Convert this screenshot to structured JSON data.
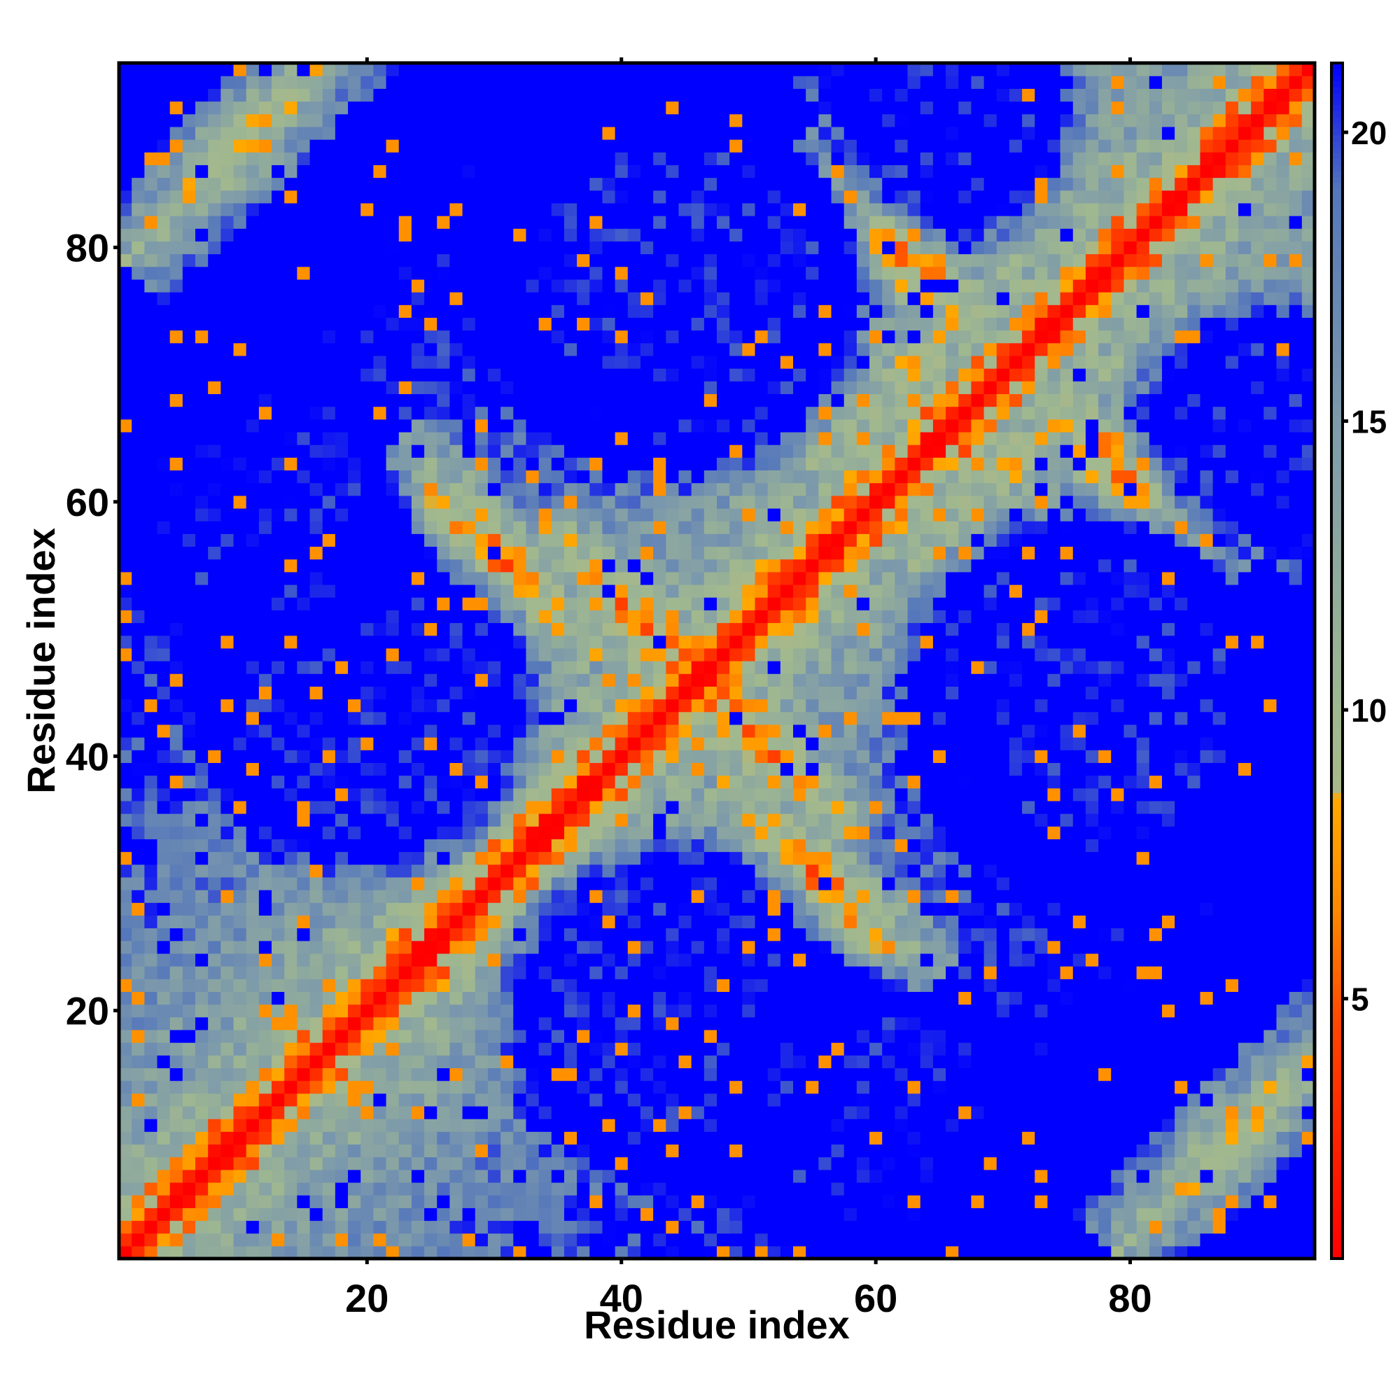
{
  "chart_data": {
    "type": "heatmap",
    "title": "",
    "xlabel": "Residue index",
    "ylabel": "Residue index",
    "n_residues": 94,
    "xlim": [
      1,
      94
    ],
    "ylim": [
      1,
      94
    ],
    "x_ticks": [
      {
        "value": 20,
        "label": "20"
      },
      {
        "value": 40,
        "label": "40"
      },
      {
        "value": 60,
        "label": "60"
      },
      {
        "value": 80,
        "label": "80"
      }
    ],
    "y_ticks": [
      {
        "value": 20,
        "label": "20"
      },
      {
        "value": 40,
        "label": "40"
      },
      {
        "value": 60,
        "label": "60"
      },
      {
        "value": 80,
        "label": "80"
      }
    ],
    "colorbar": {
      "min": 0.5,
      "max": 21.2,
      "ticks": [
        {
          "value": 5,
          "label": "5"
        },
        {
          "value": 10,
          "label": "10"
        },
        {
          "value": 15,
          "label": "15"
        },
        {
          "value": 20,
          "label": "20"
        }
      ],
      "color_stops": [
        {
          "value": 0.5,
          "color": "#ff0000"
        },
        {
          "value": 4.5,
          "color": "#ff4400"
        },
        {
          "value": 6.5,
          "color": "#ff8800"
        },
        {
          "value": 8.5,
          "color": "#ffaa00"
        },
        {
          "value": 8.6,
          "color": "#a8b88a"
        },
        {
          "value": 10.0,
          "color": "#a0b890"
        },
        {
          "value": 15.0,
          "color": "#7d9aab"
        },
        {
          "value": 19.0,
          "color": "#5577bb"
        },
        {
          "value": 21.2,
          "color": "#0000ff"
        }
      ]
    },
    "value_description": "Pairwise residue distance (symmetric contact/distance map)",
    "structure": {
      "diagonal_value": 0.5,
      "cutoff": 21.2,
      "secondary_structure_segments": [
        {
          "start": 2,
          "end": 18
        },
        {
          "start": 22,
          "end": 34
        },
        {
          "start": 38,
          "end": 52
        },
        {
          "start": 56,
          "end": 68
        },
        {
          "start": 72,
          "end": 92
        }
      ],
      "contact_bands": [
        {
          "i_center": 30,
          "j_center": 56,
          "width": 5,
          "anti_parallel": true
        },
        {
          "i_center": 42,
          "j_center": 50,
          "width": 4,
          "anti_parallel": true
        },
        {
          "i_center": 48,
          "j_center": 36,
          "width": 4,
          "anti_parallel": true
        },
        {
          "i_center": 64,
          "j_center": 72,
          "width": 4,
          "anti_parallel": false
        },
        {
          "i_center": 10,
          "j_center": 88,
          "width": 6,
          "anti_parallel": false
        },
        {
          "i_center": 82,
          "j_center": 8,
          "width": 6,
          "anti_parallel": false
        },
        {
          "i_center": 26,
          "j_center": 8,
          "width": 5,
          "anti_parallel": false
        },
        {
          "i_center": 62,
          "j_center": 80,
          "width": 4,
          "anti_parallel": true
        }
      ],
      "blue_voids": [
        {
          "i_center": 44,
          "j_center": 80,
          "radius": 12
        },
        {
          "i_center": 80,
          "j_center": 44,
          "radius": 12
        },
        {
          "i_center": 20,
          "j_center": 44,
          "radius": 11
        },
        {
          "i_center": 44,
          "j_center": 20,
          "radius": 11
        },
        {
          "i_center": 76,
          "j_center": 44,
          "radius": 12
        },
        {
          "i_center": 44,
          "j_center": 76,
          "radius": 12
        },
        {
          "i_center": 60,
          "j_center": 12,
          "radius": 9
        },
        {
          "i_center": 12,
          "j_center": 60,
          "radius": 9
        },
        {
          "i_center": 66,
          "j_center": 90,
          "radius": 7
        },
        {
          "i_center": 90,
          "j_center": 66,
          "radius": 7
        }
      ]
    }
  }
}
